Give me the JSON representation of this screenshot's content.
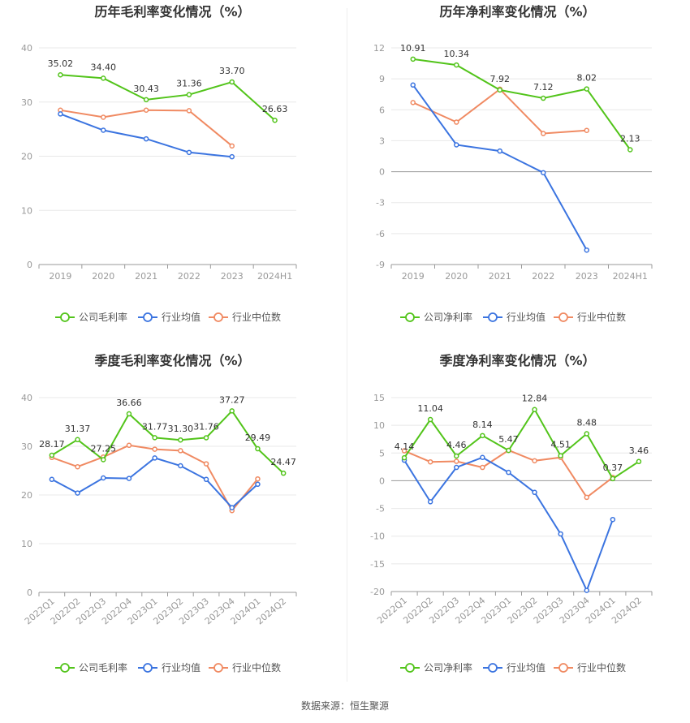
{
  "source": "数据来源：恒生聚源",
  "legends": {
    "gross": [
      "公司毛利率",
      "行业均值",
      "行业中位数"
    ],
    "net": [
      "公司净利率",
      "行业均值",
      "行业中位数"
    ]
  },
  "colors": {
    "company": "#52c41a",
    "avg": "#3b74e0",
    "median": "#f08a62"
  },
  "chart_data": [
    {
      "type": "line",
      "title": "历年毛利率变化情况（%）",
      "categories": [
        "2019",
        "2020",
        "2021",
        "2022",
        "2023",
        "2024H1"
      ],
      "ylim": [
        0,
        40
      ],
      "yticks": [
        0,
        10,
        20,
        30,
        40
      ],
      "series": [
        {
          "name": "公司毛利率",
          "values": [
            35.02,
            34.4,
            30.43,
            31.36,
            33.7,
            26.63
          ],
          "labels": [
            "35.02",
            "34.40",
            "30.43",
            "31.36",
            "33.70",
            "26.63"
          ]
        },
        {
          "name": "行业均值",
          "values": [
            27.8,
            24.8,
            23.2,
            20.7,
            19.9,
            null
          ]
        },
        {
          "name": "行业中位数",
          "values": [
            28.5,
            27.2,
            28.5,
            28.4,
            21.9,
            null
          ]
        }
      ]
    },
    {
      "type": "line",
      "title": "历年净利率变化情况（%）",
      "categories": [
        "2019",
        "2020",
        "2021",
        "2022",
        "2023",
        "2024H1"
      ],
      "ylim": [
        -9,
        12
      ],
      "yticks": [
        -9,
        -6,
        -3,
        0,
        3,
        6,
        9,
        12
      ],
      "series": [
        {
          "name": "公司净利率",
          "values": [
            10.91,
            10.34,
            7.92,
            7.12,
            8.02,
            2.13
          ],
          "labels": [
            "10.91",
            "10.34",
            "7.92",
            "7.12",
            "8.02",
            "2.13"
          ]
        },
        {
          "name": "行业均值",
          "values": [
            8.4,
            2.6,
            2.0,
            -0.1,
            -7.6,
            null
          ]
        },
        {
          "name": "行业中位数",
          "values": [
            6.7,
            4.8,
            8.0,
            3.7,
            4.0,
            null
          ]
        }
      ]
    },
    {
      "type": "line",
      "title": "季度毛利率变化情况（%）",
      "categories": [
        "2022Q1",
        "2022Q2",
        "2022Q3",
        "2022Q4",
        "2023Q1",
        "2023Q2",
        "2023Q3",
        "2023Q4",
        "2024Q1",
        "2024Q2"
      ],
      "ylim": [
        0,
        40
      ],
      "yticks": [
        0,
        10,
        20,
        30,
        40
      ],
      "series": [
        {
          "name": "公司毛利率",
          "values": [
            28.17,
            31.37,
            27.25,
            36.66,
            31.77,
            31.3,
            31.76,
            37.27,
            29.49,
            24.47
          ],
          "labels": [
            "28.17",
            "31.37",
            "27.25",
            "36.66",
            "31.77",
            "31.30",
            "31.76",
            "37.27",
            "29.49",
            "24.47"
          ]
        },
        {
          "name": "行业均值",
          "values": [
            23.2,
            20.4,
            23.5,
            23.4,
            27.6,
            26.0,
            23.2,
            17.4,
            22.2,
            null
          ]
        },
        {
          "name": "行业中位数",
          "values": [
            27.7,
            25.8,
            27.8,
            30.2,
            29.4,
            29.1,
            26.4,
            16.8,
            23.3,
            null
          ]
        }
      ]
    },
    {
      "type": "line",
      "title": "季度净利率变化情况（%）",
      "categories": [
        "2022Q1",
        "2022Q2",
        "2022Q3",
        "2022Q4",
        "2023Q1",
        "2023Q2",
        "2023Q3",
        "2023Q4",
        "2024Q1",
        "2024Q2"
      ],
      "ylim": [
        -20,
        15
      ],
      "yticks": [
        -20,
        -15,
        -10,
        -5,
        0,
        5,
        10,
        15
      ],
      "series": [
        {
          "name": "公司净利率",
          "values": [
            4.14,
            11.04,
            4.46,
            8.14,
            5.47,
            12.84,
            4.51,
            8.48,
            0.37,
            3.46
          ],
          "labels": [
            "4.14",
            "11.04",
            "4.46",
            "8.14",
            "5.47",
            "12.84",
            "4.51",
            "8.48",
            "0.37",
            "3.46"
          ]
        },
        {
          "name": "行业均值",
          "values": [
            3.7,
            -3.8,
            2.4,
            4.2,
            1.5,
            -2.1,
            -9.6,
            -19.8,
            -7.0,
            null
          ]
        },
        {
          "name": "行业中位数",
          "values": [
            5.4,
            3.4,
            3.5,
            2.4,
            5.5,
            3.6,
            4.2,
            -3.0,
            0.6,
            null
          ]
        }
      ]
    }
  ]
}
